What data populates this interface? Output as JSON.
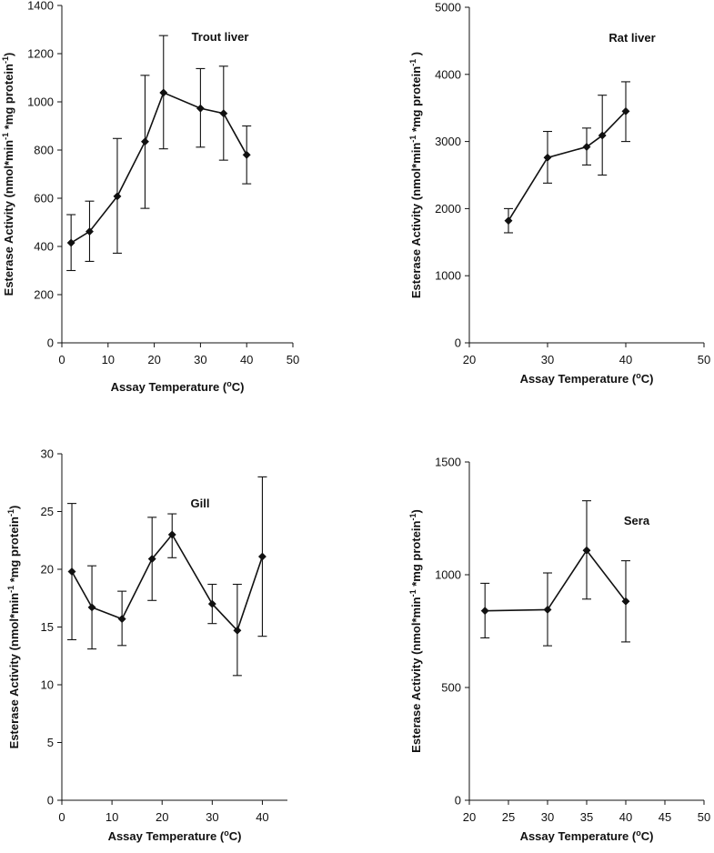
{
  "colors": {
    "ink": "#111111",
    "background": "#ffffff"
  },
  "chart_data": [
    {
      "type": "line",
      "title": "Trout liver",
      "xlabel": "Assay Temperature",
      "xlabel_sup": "o",
      "xlabel_tail": "C)",
      "ylabel_parts": [
        "Esterase Activity (nmol*min",
        "-1",
        " *mg protein",
        "-1",
        ")"
      ],
      "xlim": [
        0,
        50
      ],
      "ylim": [
        0,
        1400
      ],
      "xticks": [
        0,
        10,
        20,
        30,
        40,
        50
      ],
      "yticks": [
        0,
        200,
        400,
        600,
        800,
        1000,
        1200,
        1400
      ],
      "grid": false,
      "legend": "none",
      "marker": "diamond",
      "series": [
        {
          "x": [
            2,
            6,
            12,
            18,
            22,
            30,
            35,
            40
          ],
          "y": [
            415,
            462,
            608,
            835,
            1038,
            973,
            952,
            780
          ],
          "err_low": [
            300,
            338,
            372,
            558,
            805,
            812,
            758,
            660
          ],
          "err_high": [
            532,
            588,
            848,
            1110,
            1275,
            1138,
            1148,
            900
          ]
        }
      ]
    },
    {
      "type": "line",
      "title": "Rat liver",
      "xlabel": "Assay Temperature",
      "xlabel_sup": "o",
      "xlabel_tail": "C)",
      "ylabel_parts": [
        "Esterase Activity (nmol*min",
        "-1",
        " *mg protein",
        "-1",
        " )"
      ],
      "xlim": [
        20,
        50
      ],
      "ylim": [
        0,
        5000
      ],
      "xticks": [
        20,
        30,
        40,
        50
      ],
      "yticks": [
        0,
        1000,
        2000,
        3000,
        4000,
        5000
      ],
      "grid": false,
      "legend": "none",
      "marker": "diamond",
      "series": [
        {
          "x": [
            25,
            30,
            35,
            37,
            40
          ],
          "y": [
            1820,
            2760,
            2920,
            3090,
            3450
          ],
          "err_low": [
            1640,
            2380,
            2650,
            2500,
            3000
          ],
          "err_high": [
            2000,
            3150,
            3200,
            3690,
            3890
          ]
        }
      ]
    },
    {
      "type": "line",
      "title": "Gill",
      "xlabel": "Assay Temperature",
      "xlabel_sup": "o",
      "xlabel_tail": "C)",
      "ylabel_parts": [
        "Esterase Activity (nmol*min",
        "-1",
        " *mg protein",
        "-1",
        ")"
      ],
      "xlim": [
        0,
        45
      ],
      "ylim": [
        0,
        30
      ],
      "xticks": [
        0,
        10,
        20,
        30,
        40
      ],
      "yticks": [
        0,
        5,
        10,
        15,
        20,
        25,
        30
      ],
      "grid": false,
      "legend": "none",
      "marker": "diamond",
      "series": [
        {
          "x": [
            2,
            6,
            12,
            18,
            22,
            30,
            35,
            40
          ],
          "y": [
            19.8,
            16.7,
            15.7,
            20.9,
            23.0,
            17.0,
            14.7,
            21.1
          ],
          "err_low": [
            13.9,
            13.1,
            13.4,
            17.3,
            21.0,
            15.3,
            10.8,
            14.2
          ],
          "err_high": [
            25.7,
            20.3,
            18.1,
            24.5,
            24.8,
            18.7,
            18.7,
            28.0
          ]
        }
      ]
    },
    {
      "type": "line",
      "title": "Sera",
      "xlabel": "Assay Temperature",
      "xlabel_sup": "o",
      "xlabel_tail": "C)",
      "ylabel_parts": [
        "Esterase Activity (nmol*min",
        "-1",
        " *mg protein",
        "-1",
        ")"
      ],
      "xlim": [
        20,
        50
      ],
      "ylim": [
        0,
        1500
      ],
      "xticks": [
        20,
        25,
        30,
        35,
        40,
        45,
        50
      ],
      "yticks": [
        0,
        500,
        1000,
        1500
      ],
      "grid": false,
      "legend": "none",
      "marker": "diamond",
      "series": [
        {
          "x": [
            22,
            30,
            35,
            40
          ],
          "y": [
            840,
            845,
            1108,
            882
          ],
          "err_low": [
            720,
            685,
            892,
            702
          ],
          "err_high": [
            962,
            1008,
            1328,
            1062
          ]
        }
      ]
    }
  ]
}
